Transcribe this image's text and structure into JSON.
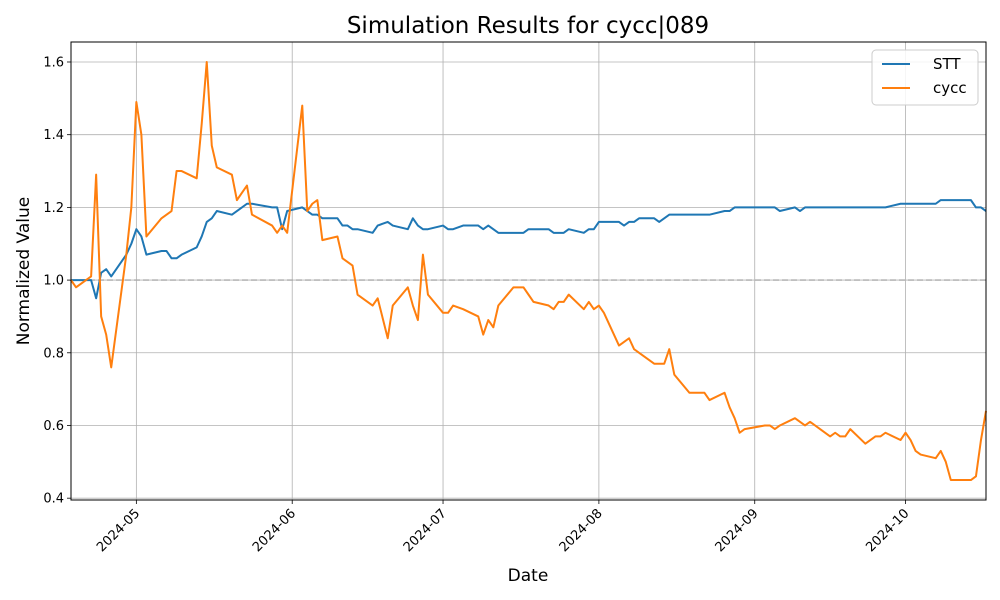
{
  "chart_data": {
    "type": "line",
    "title": "Simulation Results for cycc|089",
    "xlabel": "Date",
    "ylabel": "Normalized Value",
    "xlim": [
      "2024-04-18",
      "2024-10-17"
    ],
    "ylim": [
      0.395,
      1.655
    ],
    "x_ticks": [
      {
        "date": "2024-05-01",
        "label": "2024-05"
      },
      {
        "date": "2024-06-01",
        "label": "2024-06"
      },
      {
        "date": "2024-07-01",
        "label": "2024-07"
      },
      {
        "date": "2024-08-01",
        "label": "2024-08"
      },
      {
        "date": "2024-09-01",
        "label": "2024-09"
      },
      {
        "date": "2024-10-01",
        "label": "2024-10"
      }
    ],
    "y_ticks": [
      {
        "value": 0.4,
        "label": "0.4"
      },
      {
        "value": 0.6,
        "label": "0.6"
      },
      {
        "value": 0.8,
        "label": "0.8"
      },
      {
        "value": 1.0,
        "label": "1.0"
      },
      {
        "value": 1.2,
        "label": "1.2"
      },
      {
        "value": 1.4,
        "label": "1.4"
      },
      {
        "value": 1.6,
        "label": "1.6"
      }
    ],
    "grid": true,
    "legend_position": "top-right",
    "reference_line": {
      "y": 1.0,
      "style": "dashed",
      "color": "#aaaaaa"
    },
    "series": [
      {
        "name": "STT",
        "color": "#1f77b4",
        "points": [
          [
            "2024-04-18",
            1.0
          ],
          [
            "2024-04-19",
            1.0
          ],
          [
            "2024-04-22",
            1.0
          ],
          [
            "2024-04-23",
            0.95
          ],
          [
            "2024-04-24",
            1.02
          ],
          [
            "2024-04-25",
            1.03
          ],
          [
            "2024-04-26",
            1.01
          ],
          [
            "2024-04-29",
            1.07
          ],
          [
            "2024-04-30",
            1.1
          ],
          [
            "2024-05-01",
            1.14
          ],
          [
            "2024-05-02",
            1.12
          ],
          [
            "2024-05-03",
            1.07
          ],
          [
            "2024-05-06",
            1.08
          ],
          [
            "2024-05-07",
            1.08
          ],
          [
            "2024-05-08",
            1.06
          ],
          [
            "2024-05-09",
            1.06
          ],
          [
            "2024-05-10",
            1.07
          ],
          [
            "2024-05-13",
            1.09
          ],
          [
            "2024-05-14",
            1.12
          ],
          [
            "2024-05-15",
            1.16
          ],
          [
            "2024-05-16",
            1.17
          ],
          [
            "2024-05-17",
            1.19
          ],
          [
            "2024-05-20",
            1.18
          ],
          [
            "2024-05-21",
            1.19
          ],
          [
            "2024-05-22",
            1.2
          ],
          [
            "2024-05-23",
            1.21
          ],
          [
            "2024-05-24",
            1.21
          ],
          [
            "2024-05-28",
            1.2
          ],
          [
            "2024-05-29",
            1.2
          ],
          [
            "2024-05-30",
            1.14
          ],
          [
            "2024-05-31",
            1.19
          ],
          [
            "2024-06-03",
            1.2
          ],
          [
            "2024-06-04",
            1.19
          ],
          [
            "2024-06-05",
            1.18
          ],
          [
            "2024-06-06",
            1.18
          ],
          [
            "2024-06-07",
            1.17
          ],
          [
            "2024-06-10",
            1.17
          ],
          [
            "2024-06-11",
            1.15
          ],
          [
            "2024-06-12",
            1.15
          ],
          [
            "2024-06-13",
            1.14
          ],
          [
            "2024-06-14",
            1.14
          ],
          [
            "2024-06-17",
            1.13
          ],
          [
            "2024-06-18",
            1.15
          ],
          [
            "2024-06-20",
            1.16
          ],
          [
            "2024-06-21",
            1.15
          ],
          [
            "2024-06-24",
            1.14
          ],
          [
            "2024-06-25",
            1.17
          ],
          [
            "2024-06-26",
            1.15
          ],
          [
            "2024-06-27",
            1.14
          ],
          [
            "2024-06-28",
            1.14
          ],
          [
            "2024-07-01",
            1.15
          ],
          [
            "2024-07-02",
            1.14
          ],
          [
            "2024-07-03",
            1.14
          ],
          [
            "2024-07-05",
            1.15
          ],
          [
            "2024-07-08",
            1.15
          ],
          [
            "2024-07-09",
            1.14
          ],
          [
            "2024-07-10",
            1.15
          ],
          [
            "2024-07-11",
            1.14
          ],
          [
            "2024-07-12",
            1.13
          ],
          [
            "2024-07-15",
            1.13
          ],
          [
            "2024-07-16",
            1.13
          ],
          [
            "2024-07-17",
            1.13
          ],
          [
            "2024-07-18",
            1.14
          ],
          [
            "2024-07-19",
            1.14
          ],
          [
            "2024-07-22",
            1.14
          ],
          [
            "2024-07-23",
            1.13
          ],
          [
            "2024-07-24",
            1.13
          ],
          [
            "2024-07-25",
            1.13
          ],
          [
            "2024-07-26",
            1.14
          ],
          [
            "2024-07-29",
            1.13
          ],
          [
            "2024-07-30",
            1.14
          ],
          [
            "2024-07-31",
            1.14
          ],
          [
            "2024-08-01",
            1.16
          ],
          [
            "2024-08-02",
            1.16
          ],
          [
            "2024-08-05",
            1.16
          ],
          [
            "2024-08-06",
            1.15
          ],
          [
            "2024-08-07",
            1.16
          ],
          [
            "2024-08-08",
            1.16
          ],
          [
            "2024-08-09",
            1.17
          ],
          [
            "2024-08-12",
            1.17
          ],
          [
            "2024-08-13",
            1.16
          ],
          [
            "2024-08-14",
            1.17
          ],
          [
            "2024-08-15",
            1.18
          ],
          [
            "2024-08-16",
            1.18
          ],
          [
            "2024-08-19",
            1.18
          ],
          [
            "2024-08-20",
            1.18
          ],
          [
            "2024-08-21",
            1.18
          ],
          [
            "2024-08-22",
            1.18
          ],
          [
            "2024-08-23",
            1.18
          ],
          [
            "2024-08-26",
            1.19
          ],
          [
            "2024-08-27",
            1.19
          ],
          [
            "2024-08-28",
            1.2
          ],
          [
            "2024-08-29",
            1.2
          ],
          [
            "2024-08-30",
            1.2
          ],
          [
            "2024-09-03",
            1.2
          ],
          [
            "2024-09-04",
            1.2
          ],
          [
            "2024-09-05",
            1.2
          ],
          [
            "2024-09-06",
            1.19
          ],
          [
            "2024-09-09",
            1.2
          ],
          [
            "2024-09-10",
            1.19
          ],
          [
            "2024-09-11",
            1.2
          ],
          [
            "2024-09-12",
            1.2
          ],
          [
            "2024-09-13",
            1.2
          ],
          [
            "2024-09-16",
            1.2
          ],
          [
            "2024-09-17",
            1.2
          ],
          [
            "2024-09-18",
            1.2
          ],
          [
            "2024-09-19",
            1.2
          ],
          [
            "2024-09-20",
            1.2
          ],
          [
            "2024-09-23",
            1.2
          ],
          [
            "2024-09-24",
            1.2
          ],
          [
            "2024-09-25",
            1.2
          ],
          [
            "2024-09-26",
            1.2
          ],
          [
            "2024-09-27",
            1.2
          ],
          [
            "2024-09-30",
            1.21
          ],
          [
            "2024-10-01",
            1.21
          ],
          [
            "2024-10-02",
            1.21
          ],
          [
            "2024-10-03",
            1.21
          ],
          [
            "2024-10-04",
            1.21
          ],
          [
            "2024-10-07",
            1.21
          ],
          [
            "2024-10-08",
            1.22
          ],
          [
            "2024-10-09",
            1.22
          ],
          [
            "2024-10-10",
            1.22
          ],
          [
            "2024-10-11",
            1.22
          ],
          [
            "2024-10-14",
            1.22
          ],
          [
            "2024-10-15",
            1.2
          ],
          [
            "2024-10-16",
            1.2
          ],
          [
            "2024-10-17",
            1.19
          ]
        ]
      },
      {
        "name": "cycc",
        "color": "#ff7f0e",
        "points": [
          [
            "2024-04-18",
            1.0
          ],
          [
            "2024-04-19",
            0.98
          ],
          [
            "2024-04-22",
            1.01
          ],
          [
            "2024-04-23",
            1.29
          ],
          [
            "2024-04-24",
            0.9
          ],
          [
            "2024-04-25",
            0.85
          ],
          [
            "2024-04-26",
            0.76
          ],
          [
            "2024-04-29",
            1.07
          ],
          [
            "2024-04-30",
            1.2
          ],
          [
            "2024-05-01",
            1.49
          ],
          [
            "2024-05-02",
            1.4
          ],
          [
            "2024-05-03",
            1.12
          ],
          [
            "2024-05-06",
            1.17
          ],
          [
            "2024-05-07",
            1.18
          ],
          [
            "2024-05-08",
            1.19
          ],
          [
            "2024-05-09",
            1.3
          ],
          [
            "2024-05-10",
            1.3
          ],
          [
            "2024-05-13",
            1.28
          ],
          [
            "2024-05-14",
            1.43
          ],
          [
            "2024-05-15",
            1.6
          ],
          [
            "2024-05-16",
            1.37
          ],
          [
            "2024-05-17",
            1.31
          ],
          [
            "2024-05-20",
            1.29
          ],
          [
            "2024-05-21",
            1.22
          ],
          [
            "2024-05-22",
            1.24
          ],
          [
            "2024-05-23",
            1.26
          ],
          [
            "2024-05-24",
            1.18
          ],
          [
            "2024-05-28",
            1.15
          ],
          [
            "2024-05-29",
            1.13
          ],
          [
            "2024-05-30",
            1.15
          ],
          [
            "2024-05-31",
            1.13
          ],
          [
            "2024-06-03",
            1.48
          ],
          [
            "2024-06-04",
            1.19
          ],
          [
            "2024-06-05",
            1.21
          ],
          [
            "2024-06-06",
            1.22
          ],
          [
            "2024-06-07",
            1.11
          ],
          [
            "2024-06-10",
            1.12
          ],
          [
            "2024-06-11",
            1.06
          ],
          [
            "2024-06-12",
            1.05
          ],
          [
            "2024-06-13",
            1.04
          ],
          [
            "2024-06-14",
            0.96
          ],
          [
            "2024-06-17",
            0.93
          ],
          [
            "2024-06-18",
            0.95
          ],
          [
            "2024-06-20",
            0.84
          ],
          [
            "2024-06-21",
            0.93
          ],
          [
            "2024-06-24",
            0.98
          ],
          [
            "2024-06-25",
            0.93
          ],
          [
            "2024-06-26",
            0.89
          ],
          [
            "2024-06-27",
            1.07
          ],
          [
            "2024-06-28",
            0.96
          ],
          [
            "2024-07-01",
            0.91
          ],
          [
            "2024-07-02",
            0.91
          ],
          [
            "2024-07-03",
            0.93
          ],
          [
            "2024-07-05",
            0.92
          ],
          [
            "2024-07-08",
            0.9
          ],
          [
            "2024-07-09",
            0.85
          ],
          [
            "2024-07-10",
            0.89
          ],
          [
            "2024-07-11",
            0.87
          ],
          [
            "2024-07-12",
            0.93
          ],
          [
            "2024-07-15",
            0.98
          ],
          [
            "2024-07-16",
            0.98
          ],
          [
            "2024-07-17",
            0.98
          ],
          [
            "2024-07-18",
            0.96
          ],
          [
            "2024-07-19",
            0.94
          ],
          [
            "2024-07-22",
            0.93
          ],
          [
            "2024-07-23",
            0.92
          ],
          [
            "2024-07-24",
            0.94
          ],
          [
            "2024-07-25",
            0.94
          ],
          [
            "2024-07-26",
            0.96
          ],
          [
            "2024-07-29",
            0.92
          ],
          [
            "2024-07-30",
            0.94
          ],
          [
            "2024-07-31",
            0.92
          ],
          [
            "2024-08-01",
            0.93
          ],
          [
            "2024-08-02",
            0.91
          ],
          [
            "2024-08-05",
            0.82
          ],
          [
            "2024-08-06",
            0.83
          ],
          [
            "2024-08-07",
            0.84
          ],
          [
            "2024-08-08",
            0.81
          ],
          [
            "2024-08-09",
            0.8
          ],
          [
            "2024-08-12",
            0.77
          ],
          [
            "2024-08-13",
            0.77
          ],
          [
            "2024-08-14",
            0.77
          ],
          [
            "2024-08-15",
            0.81
          ],
          [
            "2024-08-16",
            0.74
          ],
          [
            "2024-08-19",
            0.69
          ],
          [
            "2024-08-20",
            0.69
          ],
          [
            "2024-08-21",
            0.69
          ],
          [
            "2024-08-22",
            0.69
          ],
          [
            "2024-08-23",
            0.67
          ],
          [
            "2024-08-26",
            0.69
          ],
          [
            "2024-08-27",
            0.65
          ],
          [
            "2024-08-28",
            0.62
          ],
          [
            "2024-08-29",
            0.58
          ],
          [
            "2024-08-30",
            0.59
          ],
          [
            "2024-09-03",
            0.6
          ],
          [
            "2024-09-04",
            0.6
          ],
          [
            "2024-09-05",
            0.59
          ],
          [
            "2024-09-06",
            0.6
          ],
          [
            "2024-09-09",
            0.62
          ],
          [
            "2024-09-10",
            0.61
          ],
          [
            "2024-09-11",
            0.6
          ],
          [
            "2024-09-12",
            0.61
          ],
          [
            "2024-09-13",
            0.6
          ],
          [
            "2024-09-16",
            0.57
          ],
          [
            "2024-09-17",
            0.58
          ],
          [
            "2024-09-18",
            0.57
          ],
          [
            "2024-09-19",
            0.57
          ],
          [
            "2024-09-20",
            0.59
          ],
          [
            "2024-09-23",
            0.55
          ],
          [
            "2024-09-24",
            0.56
          ],
          [
            "2024-09-25",
            0.57
          ],
          [
            "2024-09-26",
            0.57
          ],
          [
            "2024-09-27",
            0.58
          ],
          [
            "2024-09-30",
            0.56
          ],
          [
            "2024-10-01",
            0.58
          ],
          [
            "2024-10-02",
            0.56
          ],
          [
            "2024-10-03",
            0.53
          ],
          [
            "2024-10-04",
            0.52
          ],
          [
            "2024-10-07",
            0.51
          ],
          [
            "2024-10-08",
            0.53
          ],
          [
            "2024-10-09",
            0.5
          ],
          [
            "2024-10-10",
            0.45
          ],
          [
            "2024-10-11",
            0.45
          ],
          [
            "2024-10-14",
            0.45
          ],
          [
            "2024-10-15",
            0.46
          ],
          [
            "2024-10-16",
            0.56
          ],
          [
            "2024-10-17",
            0.64
          ]
        ]
      }
    ]
  }
}
